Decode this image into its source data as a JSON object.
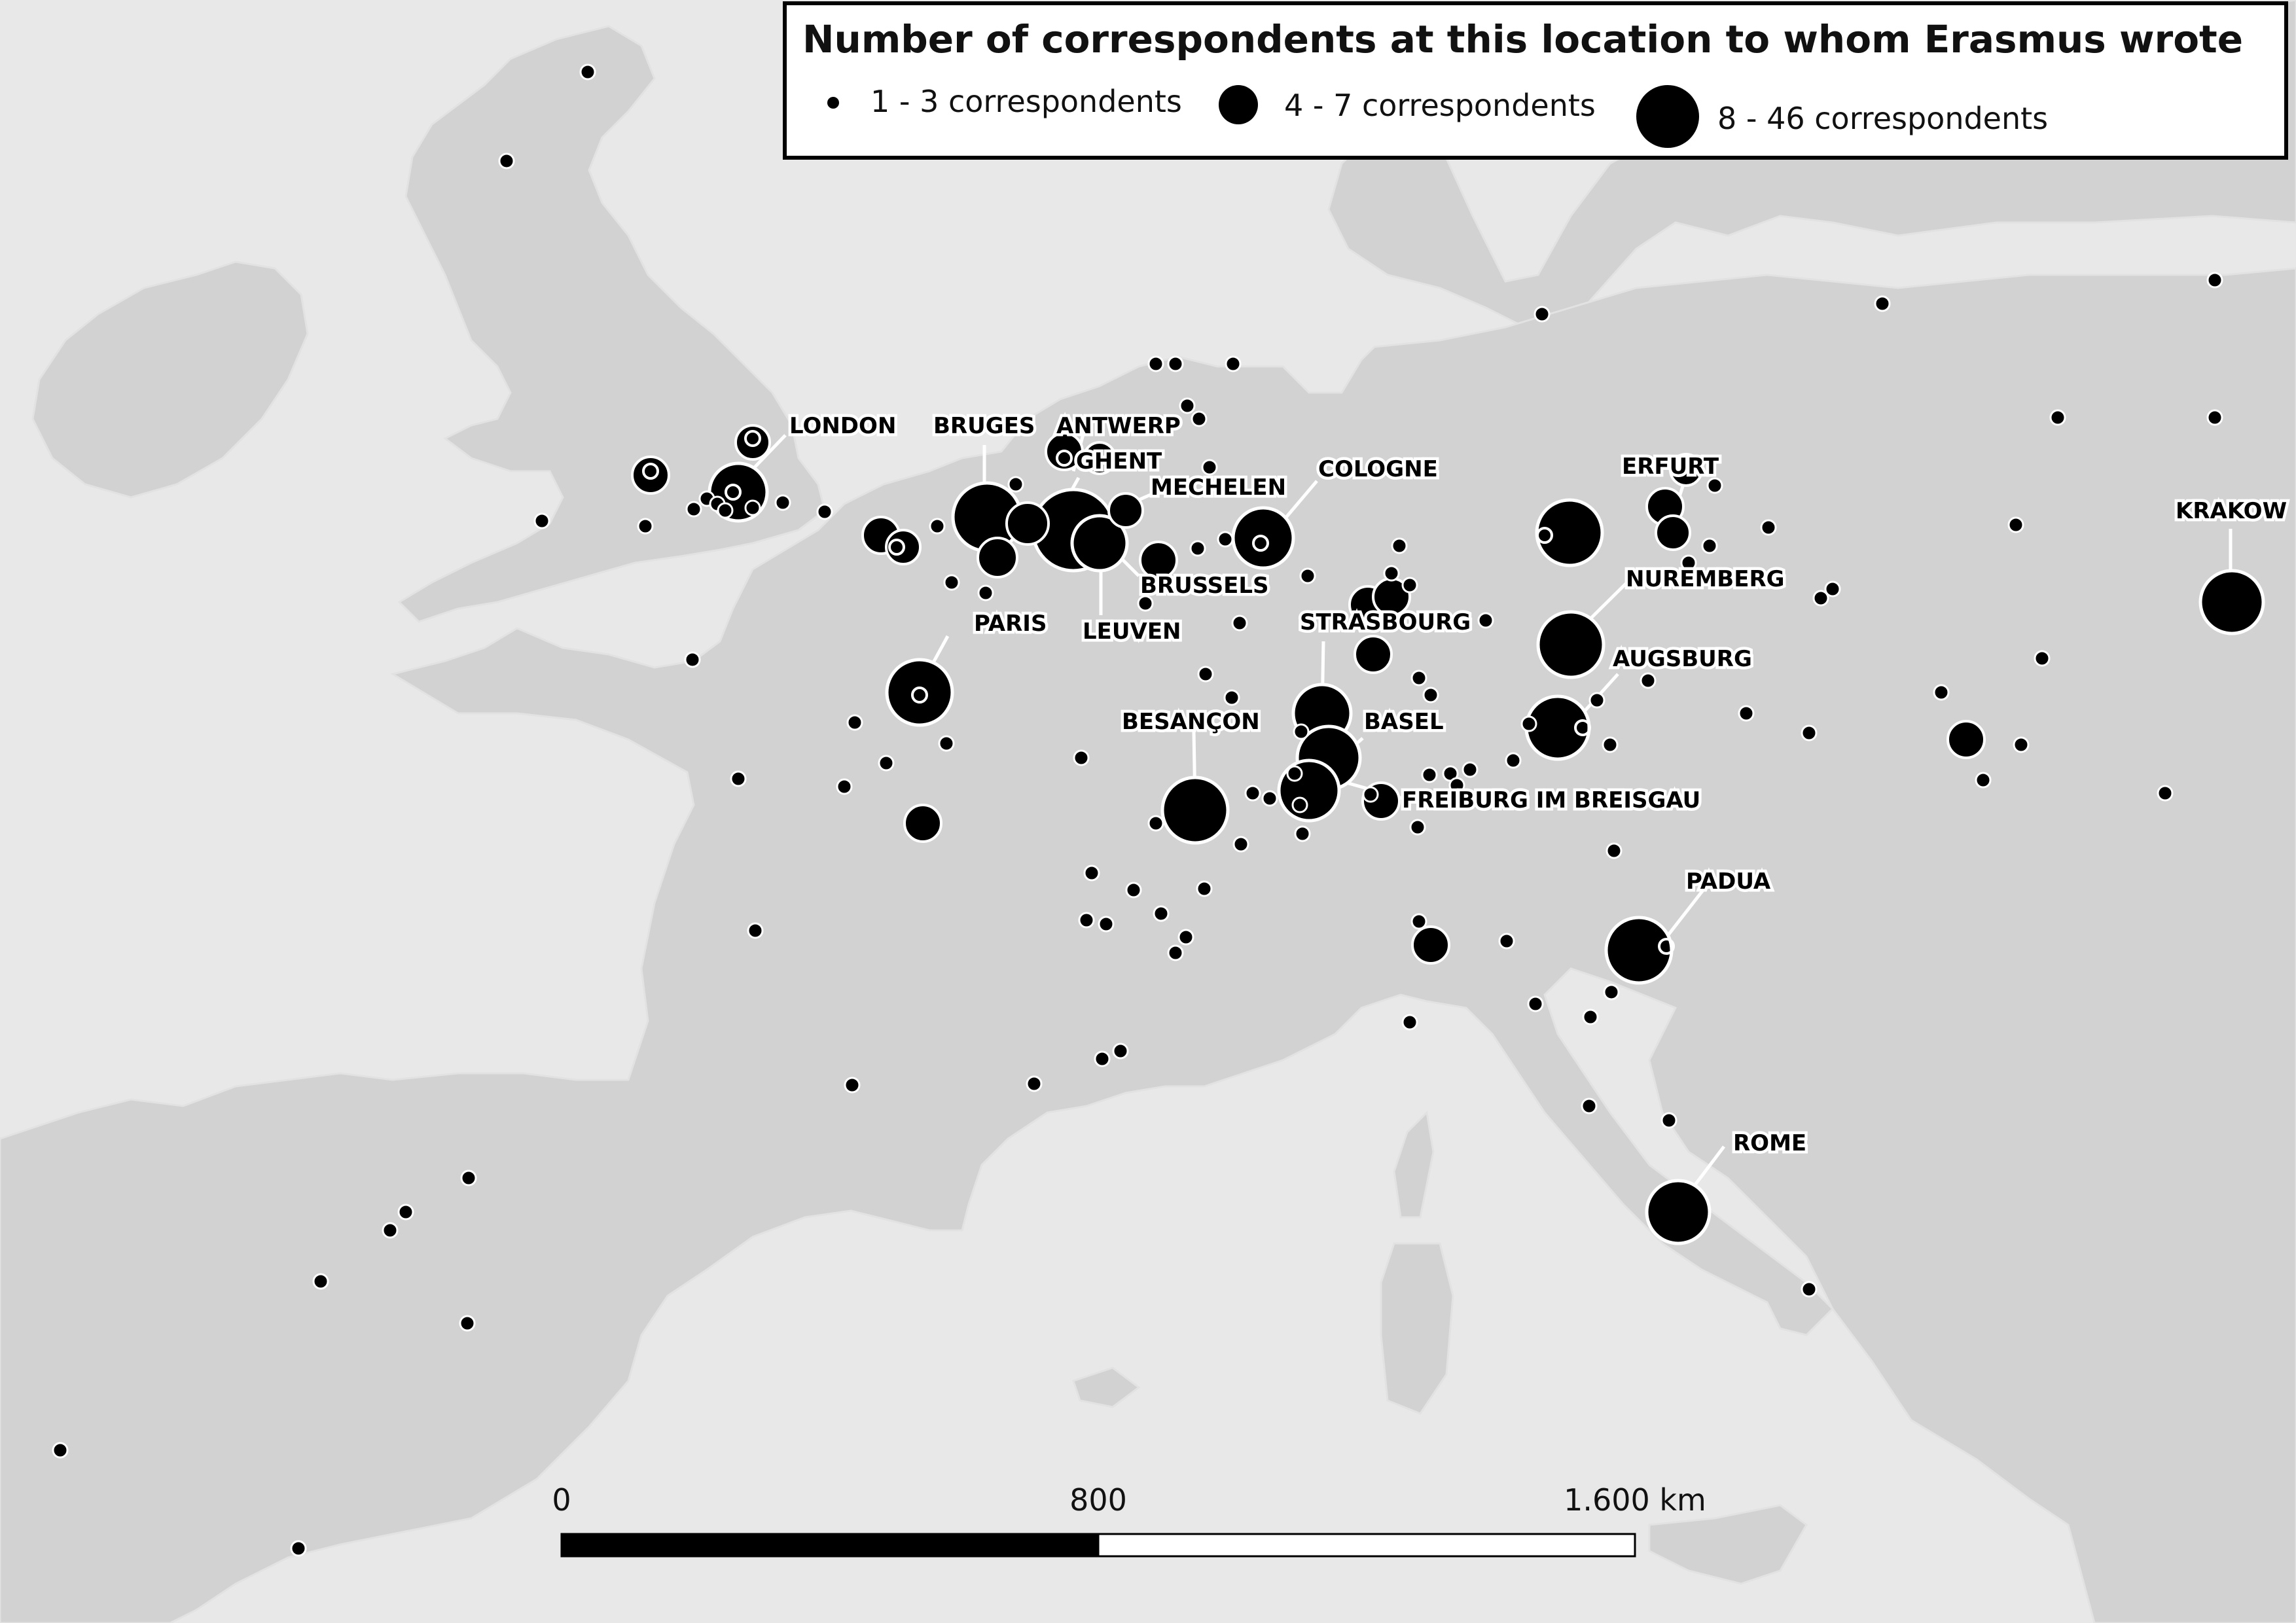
{
  "legend": {
    "title": "Number of correspondents at this location to whom Erasmus wrote",
    "small_label": "1 - 3 correspondents",
    "medium_label": "4 - 7 correspondents",
    "large_label": "8 - 46 correspondents"
  },
  "scale_bar": {
    "label_0": "0",
    "label_mid": "800",
    "label_max": "1.600 km"
  },
  "colors": {
    "background": "#e8e8e8",
    "land": "#d2d2d2",
    "marker": "#000000"
  },
  "labels": {
    "london": "LONDON",
    "bruges": "BRUGES",
    "antwerp": "ANTWERP",
    "ghent": "GHENT",
    "mechelen": "MECHELEN",
    "cologne": "COLOGNE",
    "erfurt": "ERFURT",
    "krakow": "KRAKOW",
    "nuremberg": "NUREMBERG",
    "brussels": "BRUSSELS",
    "paris": "PARIS",
    "leuven": "LEUVEN",
    "strasbourg": "STRASBOURG",
    "augsburg": "AUGSBURG",
    "besancon": "BESANÇON",
    "basel": "BASEL",
    "freiburg": "FREIBURG IM BREISGAU",
    "padua": "PADUA",
    "rome": "ROME"
  }
}
